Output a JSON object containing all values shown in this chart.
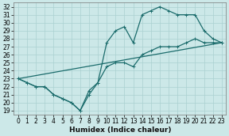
{
  "xlabel": "Humidex (Indice chaleur)",
  "xlim": [
    -0.5,
    23.5
  ],
  "ylim": [
    18.5,
    32.5
  ],
  "yticks": [
    19,
    20,
    21,
    22,
    23,
    24,
    25,
    26,
    27,
    28,
    29,
    30,
    31,
    32
  ],
  "xticks": [
    0,
    1,
    2,
    3,
    4,
    5,
    6,
    7,
    8,
    9,
    10,
    11,
    12,
    13,
    14,
    15,
    16,
    17,
    18,
    19,
    20,
    21,
    22,
    23
  ],
  "bg_color": "#cce8e8",
  "grid_color": "#aad0d0",
  "line_color": "#1a6b6b",
  "line1_y": [
    23,
    22.5,
    22,
    22,
    21,
    20.5,
    20,
    19,
    21,
    22.5,
    27.5,
    29,
    29.5,
    27.5,
    31,
    31.5,
    32,
    31.5,
    31,
    31,
    31,
    29,
    28,
    27.5
  ],
  "line2_y": [
    23,
    22.5,
    22,
    22,
    21,
    20.5,
    20,
    19,
    21.5,
    22.5,
    24.5,
    25,
    25,
    24.5,
    26,
    26.5,
    27,
    27,
    27,
    27.5,
    28,
    27.5,
    27.5,
    27.5
  ],
  "line3_x": [
    0,
    23
  ],
  "line3_y": [
    23,
    27.5
  ],
  "marker_size": 2.5,
  "linewidth": 0.9,
  "tick_fontsize": 5.5,
  "label_fontsize": 6.5
}
